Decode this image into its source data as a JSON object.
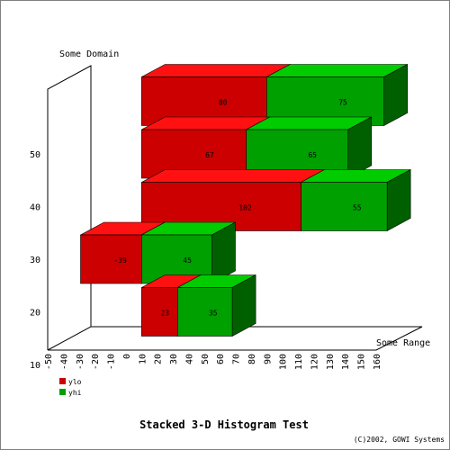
{
  "chart_data": {
    "type": "bar",
    "orientation": "horizontal",
    "stacked": true,
    "three_d": true,
    "title": "Stacked 3-D Histogram Test",
    "xlabel": "Some Range",
    "ylabel": "Some Domain",
    "xlim": [
      -50,
      160
    ],
    "x_ticks": [
      -50,
      -40,
      -30,
      -20,
      -10,
      0,
      10,
      20,
      30,
      40,
      50,
      60,
      70,
      80,
      90,
      100,
      110,
      120,
      130,
      140,
      150,
      160
    ],
    "y_ticks": [
      10,
      20,
      30,
      40,
      50
    ],
    "categories": [
      20,
      30,
      40,
      50,
      60
    ],
    "series": [
      {
        "name": "ylo",
        "values": [
          23,
          -39,
          102,
          67,
          80
        ],
        "color": "#cc0000",
        "top_color": "#ff1111"
      },
      {
        "name": "yhi",
        "values": [
          35,
          45,
          55,
          65,
          75
        ],
        "color": "#00a000",
        "top_color": "#00cc00"
      }
    ],
    "legend_placement": "bottom-left",
    "copyright": "(C)2002, GOWI Systems"
  }
}
